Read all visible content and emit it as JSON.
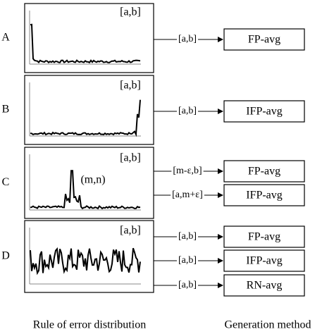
{
  "rows": [
    {
      "letter": "A",
      "panel_labels": [
        "[a,b]"
      ],
      "outputs": [
        {
          "interval": "[a,b]",
          "method": "FP-avg"
        }
      ]
    },
    {
      "letter": "B",
      "panel_labels": [
        "[a,b]"
      ],
      "outputs": [
        {
          "interval": "[a,b]",
          "method": "IFP-avg"
        }
      ]
    },
    {
      "letter": "C",
      "panel_labels": [
        "[a,b]",
        "(m,n)"
      ],
      "outputs": [
        {
          "interval": "[m-ε,b]",
          "method": "FP-avg"
        },
        {
          "interval": "[a,m+ε]",
          "method": "IFP-avg"
        }
      ]
    },
    {
      "letter": "D",
      "panel_labels": [
        "[a,b]"
      ],
      "outputs": [
        {
          "interval": "[a,b]",
          "method": "FP-avg"
        },
        {
          "interval": "[a,b]",
          "method": "IFP-avg"
        },
        {
          "interval": "[a,b]",
          "method": "RN-avg"
        }
      ]
    }
  ],
  "footer": {
    "left": "Rule of error distribution",
    "right": "Generation method"
  }
}
